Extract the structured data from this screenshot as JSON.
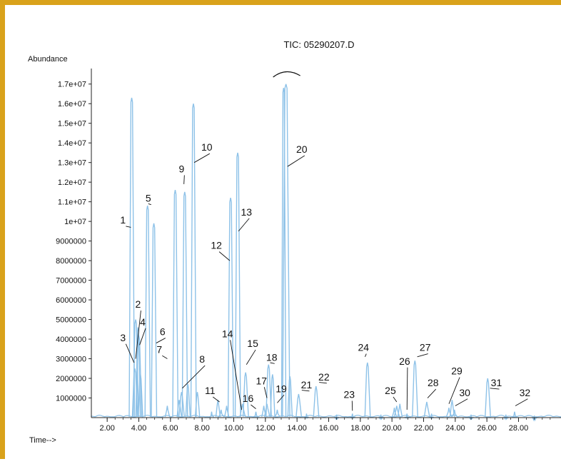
{
  "colors": {
    "border": "#d9a21b",
    "trace": "#8ec2e8",
    "axis": "#222222"
  },
  "chart_data": {
    "type": "line",
    "title": "TIC: 05290207.D",
    "ylabel": "Abundance",
    "xlabel": "Time-->",
    "xlim": [
      1.0,
      31.0
    ],
    "ylim": [
      0,
      17500000
    ],
    "grid": false,
    "x_ticks": [
      2,
      4,
      6,
      8,
      10,
      12,
      14,
      16,
      18,
      20,
      22,
      24,
      26,
      28
    ],
    "x_tick_labels": [
      "2.00",
      "4.00",
      "6.00",
      "8.00",
      "10.00",
      "12.00",
      "14.00",
      "16.00",
      "18.00",
      "20.00",
      "22.00",
      "24.00",
      "26.00",
      "28.00"
    ],
    "y_ticks": [
      1000000,
      2000000,
      3000000,
      4000000,
      5000000,
      6000000,
      7000000,
      8000000,
      9000000,
      10000000,
      11000000,
      12000000,
      13000000,
      14000000,
      15000000,
      16000000,
      17000000
    ],
    "y_tick_labels": [
      "1000000",
      "2000000",
      "3000000",
      "4000000",
      "5000000",
      "6000000",
      "7000000",
      "8000000",
      "9000000",
      "1e+07",
      "1.1e+07",
      "1.2e+07",
      "1.3e+07",
      "1.4e+07",
      "1.5e+07",
      "1.6e+07",
      "1.7e+07"
    ],
    "peaks": [
      {
        "label": "1",
        "rt": 3.55,
        "abundance": 16300000,
        "lx": 3.0,
        "ly": 9900000,
        "tx": 3.5,
        "ty": 9700000
      },
      {
        "label": "2",
        "rt": 3.8,
        "abundance": 5000000,
        "lx": 3.95,
        "ly": 5600000,
        "tx": 3.8,
        "ty": 3000000
      },
      {
        "label": "3",
        "rt": 3.75,
        "abundance": 2500000,
        "lx": 3.0,
        "ly": 3900000,
        "tx": 3.7,
        "ty": 2800000
      },
      {
        "label": "4",
        "rt": 4.0,
        "abundance": 4200000,
        "lx": 4.25,
        "ly": 4700000,
        "tx": 4.05,
        "ty": 3700000
      },
      {
        "label": "5",
        "rt": 4.55,
        "abundance": 10800000,
        "lx": 4.6,
        "ly": 11000000,
        "tx": 4.6,
        "ty": 10900000
      },
      {
        "label": "6",
        "rt": 4.95,
        "abundance": 9900000,
        "lx": 5.5,
        "ly": 4200000,
        "tx": 5.1,
        "ty": 3800000
      },
      {
        "label": "7",
        "rt": 6.3,
        "abundance": 11600000,
        "lx": 5.3,
        "ly": 3300000,
        "tx": 5.8,
        "ty": 3000000
      },
      {
        "label": "8",
        "rt": 6.7,
        "abundance": 1300000,
        "lx": 8.0,
        "ly": 2800000,
        "tx": 6.75,
        "ty": 1500000
      },
      {
        "label": "9",
        "rt": 6.9,
        "abundance": 11500000,
        "lx": 6.7,
        "ly": 12500000,
        "tx": 6.85,
        "ty": 11900000
      },
      {
        "label": "10",
        "rt": 7.45,
        "abundance": 16000000,
        "lx": 8.3,
        "ly": 13600000,
        "tx": 7.5,
        "ty": 13000000
      },
      {
        "label": "11",
        "rt": 9.2,
        "abundance": 400000,
        "lx": 8.5,
        "ly": 1200000,
        "tx": 9.1,
        "ty": 800000
      },
      {
        "label": "12",
        "rt": 9.8,
        "abundance": 11200000,
        "lx": 8.9,
        "ly": 8600000,
        "tx": 9.75,
        "ty": 8000000
      },
      {
        "label": "13",
        "rt": 10.25,
        "abundance": 13500000,
        "lx": 10.8,
        "ly": 10300000,
        "tx": 10.3,
        "ty": 9500000
      },
      {
        "label": "14",
        "rt": 10.55,
        "abundance": 700000,
        "lx": 9.6,
        "ly": 4100000,
        "tx": 10.5,
        "ty": 400000
      },
      {
        "label": "15",
        "rt": 10.75,
        "abundance": 2300000,
        "lx": 11.2,
        "ly": 3600000,
        "tx": 10.8,
        "ty": 2700000
      },
      {
        "label": "16",
        "rt": 11.4,
        "abundance": 300000,
        "lx": 10.9,
        "ly": 800000,
        "tx": 11.4,
        "ty": 450000
      },
      {
        "label": "17",
        "rt": 12.1,
        "abundance": 700000,
        "lx": 11.75,
        "ly": 1700000,
        "tx": 12.1,
        "ty": 1000000
      },
      {
        "label": "18",
        "rt": 12.2,
        "abundance": 2700000,
        "lx": 12.4,
        "ly": 2900000,
        "tx": 12.3,
        "ty": 2800000
      },
      {
        "label": "19",
        "rt": 12.75,
        "abundance": 400000,
        "lx": 13.0,
        "ly": 1300000,
        "tx": 12.75,
        "ty": 750000
      },
      {
        "label": "20",
        "rt": 13.3,
        "abundance": 17000000,
        "lx": 14.3,
        "ly": 13500000,
        "tx": 13.4,
        "ty": 12800000
      },
      {
        "label": "21",
        "rt": 14.1,
        "abundance": 1200000,
        "lx": 14.6,
        "ly": 1500000,
        "tx": 14.3,
        "ty": 1400000
      },
      {
        "label": "22",
        "rt": 15.2,
        "abundance": 1600000,
        "lx": 15.7,
        "ly": 1900000,
        "tx": 15.4,
        "ty": 1800000
      },
      {
        "label": "23",
        "rt": 17.5,
        "abundance": 200000,
        "lx": 17.3,
        "ly": 1000000,
        "tx": 17.5,
        "ty": 350000
      },
      {
        "label": "24",
        "rt": 18.45,
        "abundance": 2800000,
        "lx": 18.2,
        "ly": 3400000,
        "tx": 18.3,
        "ty": 3100000
      },
      {
        "label": "25",
        "rt": 20.3,
        "abundance": 600000,
        "lx": 19.9,
        "ly": 1200000,
        "tx": 20.3,
        "ty": 800000
      },
      {
        "label": "26",
        "rt": 20.95,
        "abundance": 200000,
        "lx": 20.8,
        "ly": 2700000,
        "tx": 20.95,
        "ty": 400000
      },
      {
        "label": "27",
        "rt": 21.45,
        "abundance": 2900000,
        "lx": 22.1,
        "ly": 3400000,
        "tx": 21.6,
        "ty": 3100000
      },
      {
        "label": "28",
        "rt": 22.2,
        "abundance": 800000,
        "lx": 22.6,
        "ly": 1600000,
        "tx": 22.25,
        "ty": 1000000
      },
      {
        "label": "29",
        "rt": 23.6,
        "abundance": 500000,
        "lx": 24.1,
        "ly": 2200000,
        "tx": 23.6,
        "ty": 700000
      },
      {
        "label": "30",
        "rt": 23.95,
        "abundance": 400000,
        "lx": 24.6,
        "ly": 1100000,
        "tx": 24.0,
        "ty": 600000
      },
      {
        "label": "31",
        "rt": 26.05,
        "abundance": 2000000,
        "lx": 26.6,
        "ly": 1600000,
        "tx": 26.2,
        "ty": 1500000
      },
      {
        "label": "32",
        "rt": 27.75,
        "abundance": 300000,
        "lx": 28.4,
        "ly": 1100000,
        "tx": 27.8,
        "ty": 600000
      }
    ],
    "minor_peaks": [
      {
        "rt": 3.95,
        "abundance": 4600000
      },
      {
        "rt": 4.1,
        "abundance": 2200000
      },
      {
        "rt": 5.8,
        "abundance": 600000
      },
      {
        "rt": 6.55,
        "abundance": 900000
      },
      {
        "rt": 7.1,
        "abundance": 1700000
      },
      {
        "rt": 7.7,
        "abundance": 1300000
      },
      {
        "rt": 8.6,
        "abundance": 300000
      },
      {
        "rt": 9.0,
        "abundance": 900000
      },
      {
        "rt": 9.55,
        "abundance": 600000
      },
      {
        "rt": 11.9,
        "abundance": 600000
      },
      {
        "rt": 12.45,
        "abundance": 2200000
      },
      {
        "rt": 13.15,
        "abundance": 16800000
      },
      {
        "rt": 13.55,
        "abundance": 2100000
      },
      {
        "rt": 14.6,
        "abundance": 200000
      },
      {
        "rt": 16.5,
        "abundance": 150000
      },
      {
        "rt": 19.3,
        "abundance": 150000
      },
      {
        "rt": 20.15,
        "abundance": 500000
      },
      {
        "rt": 20.5,
        "abundance": 700000
      },
      {
        "rt": 22.5,
        "abundance": 200000
      },
      {
        "rt": 23.8,
        "abundance": 900000
      },
      {
        "rt": 25.0,
        "abundance": 150000
      },
      {
        "rt": 27.2,
        "abundance": 150000
      },
      {
        "rt": 29.0,
        "abundance": 100000
      }
    ]
  }
}
